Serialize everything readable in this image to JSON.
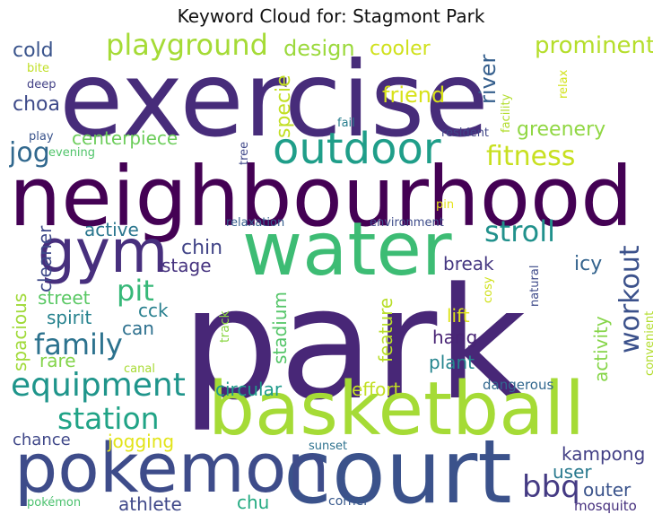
{
  "title": "Keyword Cloud for: Stagmont Park",
  "words": [
    {
      "text": "park",
      "color": "#482777"
    },
    {
      "text": "exercise",
      "color": "#472c7a"
    },
    {
      "text": "neighbourhood",
      "color": "#440154"
    },
    {
      "text": "water",
      "color": "#3dbc74"
    },
    {
      "text": "basketball",
      "color": "#a5db36"
    },
    {
      "text": "court",
      "color": "#3b528b"
    },
    {
      "text": "pokemon",
      "color": "#3e4c8a"
    },
    {
      "text": "gym",
      "color": "#472f7d"
    },
    {
      "text": "outdoor",
      "color": "#1f9e89"
    },
    {
      "text": "playground",
      "color": "#a5db36"
    },
    {
      "text": "fitness",
      "color": "#c8e020"
    },
    {
      "text": "stroll",
      "color": "#21918c"
    },
    {
      "text": "workout",
      "color": "#3b518b"
    },
    {
      "text": "family",
      "color": "#2c728e"
    },
    {
      "text": "equipment",
      "color": "#1f958b"
    },
    {
      "text": "station",
      "color": "#20a386"
    },
    {
      "text": "pit",
      "color": "#37b878"
    },
    {
      "text": "jog",
      "color": "#31688e"
    },
    {
      "text": "bbq",
      "color": "#443a83"
    },
    {
      "text": "prominent",
      "color": "#b5de2b"
    },
    {
      "text": "greenery",
      "color": "#90d743"
    },
    {
      "text": "cooler",
      "color": "#d0e11c"
    },
    {
      "text": "friend",
      "color": "#d8e219"
    },
    {
      "text": "design",
      "color": "#9bd93c"
    },
    {
      "text": "river",
      "color": "#355f8d"
    },
    {
      "text": "specie",
      "color": "#c2df23"
    },
    {
      "text": "centerpiece",
      "color": "#6ccd5a"
    },
    {
      "text": "cold",
      "color": "#3a548c"
    },
    {
      "text": "choa",
      "color": "#3e4a89"
    },
    {
      "text": "active",
      "color": "#2a768e"
    },
    {
      "text": "cleaner",
      "color": "#3e4989"
    },
    {
      "text": "chin",
      "color": "#414487"
    },
    {
      "text": "stage",
      "color": "#46337f"
    },
    {
      "text": "break",
      "color": "#453781"
    },
    {
      "text": "icy",
      "color": "#33638d"
    },
    {
      "text": "street",
      "color": "#5ac864"
    },
    {
      "text": "spirit",
      "color": "#26828e"
    },
    {
      "text": "cck",
      "color": "#277f8e"
    },
    {
      "text": "can",
      "color": "#2d708e"
    },
    {
      "text": "lift",
      "color": "#dde318"
    },
    {
      "text": "hang",
      "color": "#482475"
    },
    {
      "text": "plant",
      "color": "#25858e"
    },
    {
      "text": "feature",
      "color": "#b8de29"
    },
    {
      "text": "activity",
      "color": "#86d549"
    },
    {
      "text": "spacious",
      "color": "#a0da39"
    },
    {
      "text": "rare",
      "color": "#84d44b"
    },
    {
      "text": "stadium",
      "color": "#54c568"
    },
    {
      "text": "circular",
      "color": "#1e9b8a"
    },
    {
      "text": "effort",
      "color": "#c2df23"
    },
    {
      "text": "dangerous",
      "color": "#31678e"
    },
    {
      "text": "chance",
      "color": "#3f4788"
    },
    {
      "text": "jogging",
      "color": "#e2e418"
    },
    {
      "text": "kampong",
      "color": "#423f85"
    },
    {
      "text": "user",
      "color": "#29798e"
    },
    {
      "text": "outer",
      "color": "#3a538b"
    },
    {
      "text": "athlete",
      "color": "#3f4889"
    },
    {
      "text": "chu",
      "color": "#25ab82"
    },
    {
      "text": "corner",
      "color": "#38598c"
    },
    {
      "text": "mosquito",
      "color": "#46307e"
    },
    {
      "text": "pokémon",
      "color": "#4ac16d"
    },
    {
      "text": "sunset",
      "color": "#2d718e"
    },
    {
      "text": "canal",
      "color": "#a8db34"
    },
    {
      "text": "convenient",
      "color": "#b2dd2d"
    },
    {
      "text": "natural",
      "color": "#3e4a89"
    },
    {
      "text": "cosy",
      "color": "#d0e11c"
    },
    {
      "text": "track",
      "color": "#8bd646"
    },
    {
      "text": "relaxation",
      "color": "#355f8d"
    },
    {
      "text": "environment",
      "color": "#3e4c8a"
    },
    {
      "text": "pin",
      "color": "#e5e419"
    },
    {
      "text": "resident",
      "color": "#404688"
    },
    {
      "text": "fail",
      "color": "#277e8e"
    },
    {
      "text": "tree",
      "color": "#3f4788"
    },
    {
      "text": "facility",
      "color": "#b2dd2d"
    },
    {
      "text": "relax",
      "color": "#d2e21b"
    },
    {
      "text": "bite",
      "color": "#c0df25"
    },
    {
      "text": "deep",
      "color": "#424186"
    },
    {
      "text": "play",
      "color": "#3a548c"
    },
    {
      "text": "evening",
      "color": "#50c46a"
    }
  ]
}
